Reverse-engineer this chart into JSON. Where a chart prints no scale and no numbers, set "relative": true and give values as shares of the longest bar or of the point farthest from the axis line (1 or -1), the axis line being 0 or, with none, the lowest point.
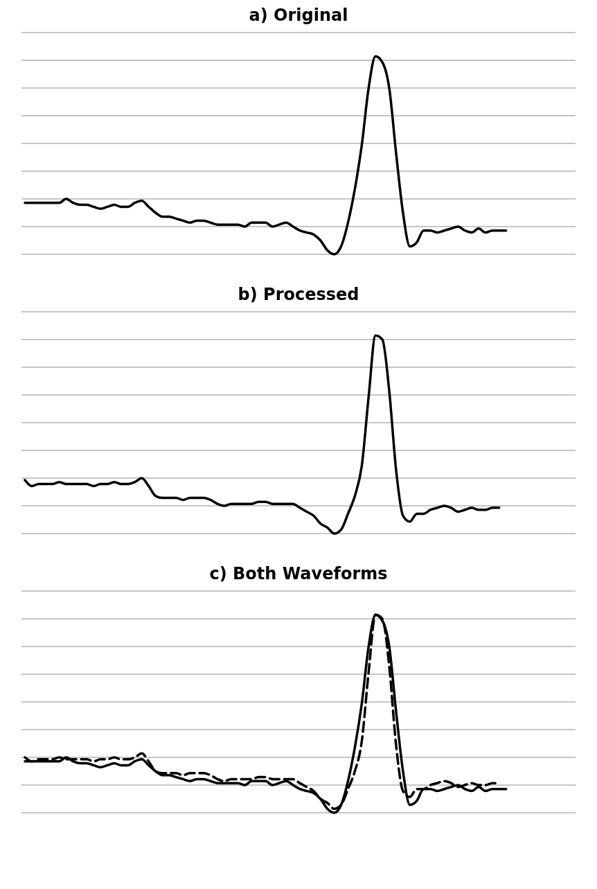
{
  "chart_data": [
    {
      "type": "line",
      "title": "a) Original",
      "relative": true,
      "grid": "y",
      "categories": [
        null,
        null,
        null,
        null,
        null,
        null,
        null,
        null,
        null,
        null,
        null,
        null,
        null,
        null,
        null,
        null,
        null,
        null,
        null,
        null,
        null,
        null,
        null,
        null,
        null,
        null,
        null,
        null,
        null,
        null,
        null,
        null,
        null,
        null,
        null,
        null,
        null,
        null,
        null,
        null,
        null,
        null,
        null,
        null,
        null,
        null,
        null,
        null,
        null,
        null,
        null,
        null,
        null,
        null,
        null,
        null,
        null,
        null,
        null,
        null,
        null,
        null,
        null,
        null,
        null,
        null,
        null,
        null,
        null,
        null,
        null
      ],
      "series": [
        {
          "color": "#000000",
          "line_style": "solid",
          "values": [
            0.26,
            0.26,
            0.26,
            0.26,
            0.26,
            0.26,
            0.28,
            0.26,
            0.25,
            0.25,
            0.24,
            0.23,
            0.24,
            0.25,
            0.24,
            0.24,
            0.26,
            0.27,
            0.24,
            0.21,
            0.19,
            0.19,
            0.18,
            0.17,
            0.16,
            0.17,
            0.17,
            0.16,
            0.15,
            0.15,
            0.15,
            0.15,
            0.14,
            0.16,
            0.16,
            0.16,
            0.14,
            0.15,
            0.16,
            0.14,
            0.12,
            0.11,
            0.1,
            0.07,
            0.02,
            0,
            0.04,
            0.16,
            0.33,
            0.55,
            0.84,
            1.0,
            0.97,
            0.84,
            0.51,
            0.21,
            0.04,
            0.06,
            0.12,
            0.12,
            0.11,
            0.12,
            0.13,
            0.14,
            0.12,
            0.11,
            0.13,
            0.11,
            0.12,
            0.12,
            0.12
          ]
        }
      ]
    },
    {
      "type": "line",
      "title": "b) Processed",
      "relative": true,
      "grid": "y",
      "categories": [
        null,
        null,
        null,
        null,
        null,
        null,
        null,
        null,
        null,
        null,
        null,
        null,
        null,
        null,
        null,
        null,
        null,
        null,
        null,
        null,
        null,
        null,
        null,
        null,
        null,
        null,
        null,
        null,
        null,
        null,
        null,
        null,
        null,
        null,
        null,
        null,
        null,
        null,
        null,
        null,
        null,
        null,
        null,
        null,
        null,
        null,
        null,
        null,
        null,
        null,
        null,
        null,
        null,
        null,
        null,
        null,
        null,
        null,
        null,
        null,
        null,
        null,
        null,
        null,
        null,
        null,
        null,
        null,
        null,
        null,
        null
      ],
      "series": [
        {
          "color": "#000000",
          "line_style": "solid",
          "values": [
            0.27,
            0.24,
            0.25,
            0.25,
            0.25,
            0.26,
            0.25,
            0.25,
            0.25,
            0.25,
            0.24,
            0.25,
            0.25,
            0.26,
            0.25,
            0.25,
            0.26,
            0.28,
            0.24,
            0.19,
            0.18,
            0.18,
            0.18,
            0.17,
            0.18,
            0.18,
            0.18,
            0.17,
            0.15,
            0.14,
            0.15,
            0.15,
            0.15,
            0.15,
            0.16,
            0.16,
            0.15,
            0.15,
            0.15,
            0.15,
            0.13,
            0.11,
            0.09,
            0.05,
            0.03,
            0,
            0.02,
            0.1,
            0.19,
            0.34,
            0.69,
            1.0,
            0.98,
            0.72,
            0.32,
            0.09,
            0.06,
            0.1,
            0.1,
            0.12,
            0.13,
            0.14,
            0.13,
            0.11,
            0.12,
            0.13,
            0.12,
            0.12,
            0.13,
            0.13,
            null
          ]
        }
      ]
    },
    {
      "type": "line",
      "title": "c) Both Waveforms",
      "relative": true,
      "grid": "y",
      "categories": [
        null,
        null,
        null,
        null,
        null,
        null,
        null,
        null,
        null,
        null,
        null,
        null,
        null,
        null,
        null,
        null,
        null,
        null,
        null,
        null,
        null,
        null,
        null,
        null,
        null,
        null,
        null,
        null,
        null,
        null,
        null,
        null,
        null,
        null,
        null,
        null,
        null,
        null,
        null,
        null,
        null,
        null,
        null,
        null,
        null,
        null,
        null,
        null,
        null,
        null,
        null,
        null,
        null,
        null,
        null,
        null,
        null,
        null,
        null,
        null,
        null,
        null,
        null,
        null,
        null,
        null,
        null,
        null,
        null,
        null,
        null
      ],
      "series": [
        {
          "color": "#000000",
          "line_style": "solid",
          "values": [
            0.26,
            0.26,
            0.26,
            0.26,
            0.26,
            0.26,
            0.28,
            0.26,
            0.25,
            0.25,
            0.24,
            0.23,
            0.24,
            0.25,
            0.24,
            0.24,
            0.26,
            0.27,
            0.24,
            0.21,
            0.19,
            0.19,
            0.18,
            0.17,
            0.16,
            0.17,
            0.17,
            0.16,
            0.15,
            0.15,
            0.15,
            0.15,
            0.14,
            0.16,
            0.16,
            0.16,
            0.14,
            0.15,
            0.16,
            0.14,
            0.12,
            0.11,
            0.1,
            0.07,
            0.02,
            0,
            0.04,
            0.16,
            0.33,
            0.55,
            0.84,
            1.0,
            0.97,
            0.84,
            0.51,
            0.21,
            0.04,
            0.06,
            0.12,
            0.12,
            0.11,
            0.12,
            0.13,
            0.14,
            0.12,
            0.11,
            0.13,
            0.11,
            0.12,
            0.12,
            0.12
          ]
        },
        {
          "color": "#000000",
          "line_style": "dashed",
          "values": [
            0.28,
            0.26,
            0.27,
            0.27,
            0.27,
            0.28,
            0.27,
            0.27,
            0.27,
            0.27,
            0.26,
            0.27,
            0.27,
            0.28,
            0.27,
            0.27,
            0.28,
            0.3,
            0.26,
            0.21,
            0.2,
            0.2,
            0.2,
            0.19,
            0.2,
            0.2,
            0.2,
            0.19,
            0.17,
            0.16,
            0.17,
            0.17,
            0.17,
            0.17,
            0.18,
            0.18,
            0.17,
            0.17,
            0.17,
            0.17,
            0.15,
            0.13,
            0.11,
            0.07,
            0.05,
            0.02,
            0.04,
            0.12,
            0.21,
            0.36,
            0.71,
            1.0,
            0.98,
            0.74,
            0.34,
            0.11,
            0.08,
            0.12,
            0.12,
            0.14,
            0.15,
            0.16,
            0.15,
            0.13,
            0.14,
            0.15,
            0.14,
            0.14,
            0.15,
            0.15,
            null
          ]
        }
      ]
    }
  ]
}
